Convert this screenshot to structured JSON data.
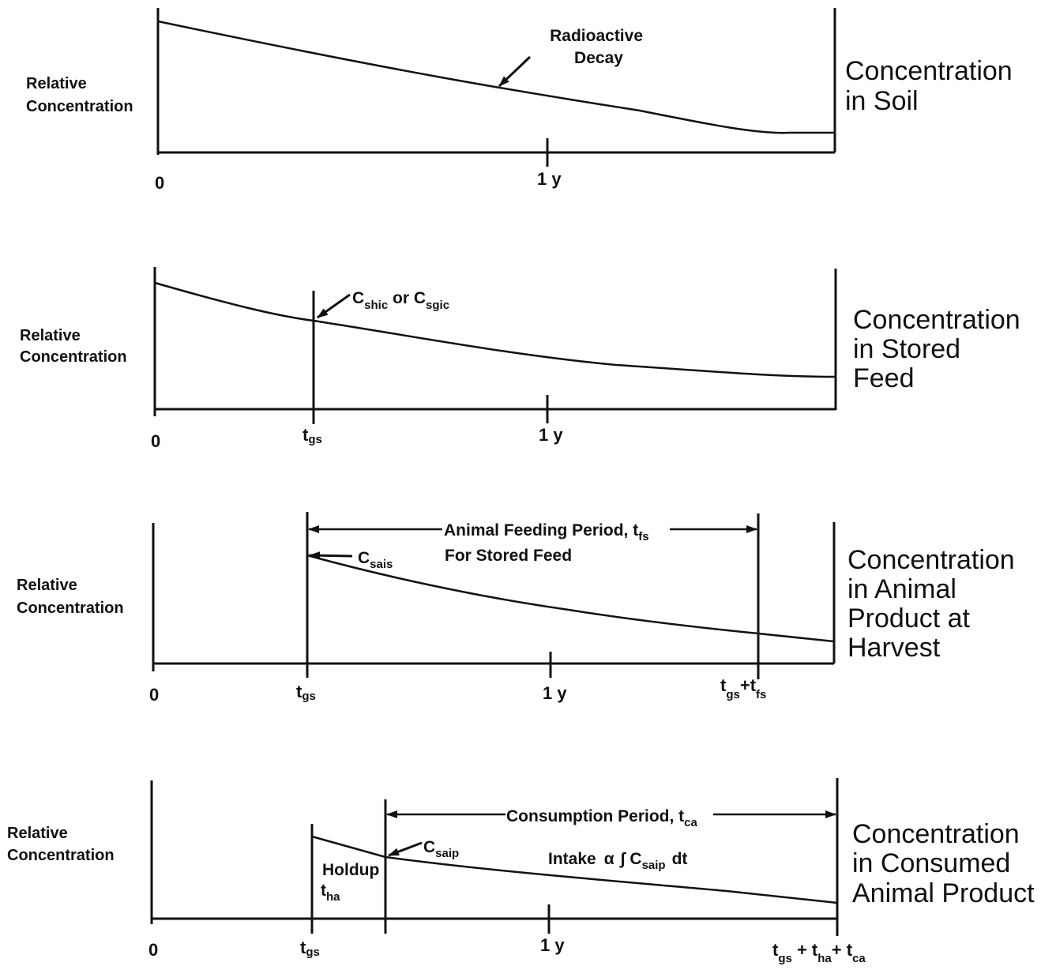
{
  "panels": [
    {
      "y_label": [
        "Relative",
        "Concentration"
      ],
      "title": [
        "Concentration",
        "in Soil"
      ],
      "ticks": {
        "zero": "0",
        "one_year": "1 y"
      },
      "annotation": [
        "Radioactive",
        "Decay"
      ]
    },
    {
      "y_label": [
        "Relative",
        "Concentration"
      ],
      "title": [
        "Concentration",
        "in Stored",
        "Feed"
      ],
      "ticks": {
        "zero": "0",
        "tgs": {
          "t": "t",
          "sub": "gs"
        },
        "one_year": "1 y"
      },
      "annotation": {
        "a": "C",
        "a_sub": "shic",
        "or": " or ",
        "b": "C",
        "b_sub": "sgic"
      }
    },
    {
      "y_label": [
        "Relative",
        "Concentration"
      ],
      "title": [
        "Concentration",
        "in Animal",
        "Product at",
        "Harvest"
      ],
      "ticks": {
        "zero": "0",
        "tgs": {
          "t": "t",
          "sub": "gs"
        },
        "one_year": "1 y",
        "end": {
          "t1": "t",
          "s1": "gs",
          "plus": "+",
          "t2": "t",
          "s2": "fs"
        }
      },
      "period": {
        "line1": "Animal Feeding Period, t",
        "line1_sub": "fs",
        "line2": "For Stored Feed"
      },
      "annotation": {
        "c": "C",
        "c_sub": "sais"
      }
    },
    {
      "y_label": [
        "Relative",
        "Concentration"
      ],
      "title": [
        "Concentration",
        "in Consumed",
        "Animal Product"
      ],
      "ticks": {
        "zero": "0",
        "tgs": {
          "t": "t",
          "sub": "gs"
        },
        "one_year": "1 y",
        "end": {
          "t1": "t",
          "s1": "gs",
          "p1": " + ",
          "t2": "t",
          "s2": "ha",
          "p2": "+ ",
          "t3": "t",
          "s3": "ca"
        }
      },
      "period": {
        "label": "Consumption Period, t",
        "label_sub": "ca"
      },
      "annotation": {
        "c": "C",
        "c_sub": "saip"
      },
      "holdup": {
        "word": "Holdup",
        "t": "t",
        "sub": "ha"
      },
      "intake": {
        "word": "Intake",
        "alpha": "α",
        "integral": "∫",
        "c": "C",
        "c_sub": "saip",
        "dt": "dt"
      }
    }
  ],
  "colors": {
    "ink": "#111111",
    "background": "#ffffff"
  }
}
